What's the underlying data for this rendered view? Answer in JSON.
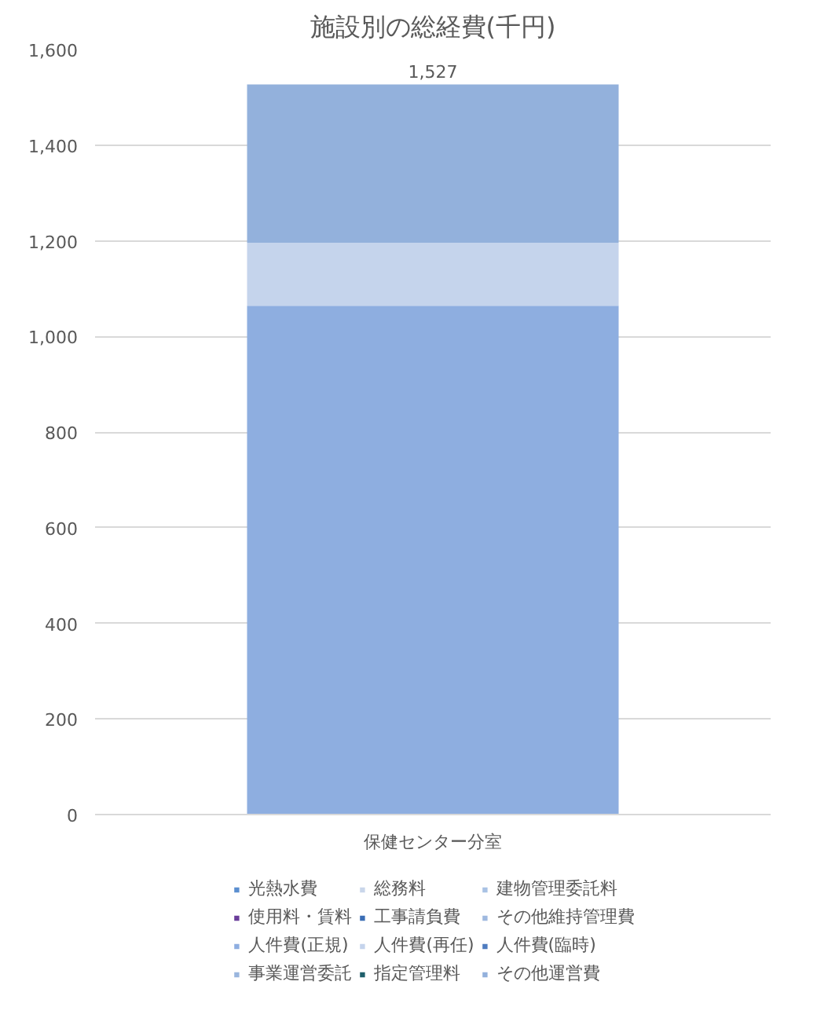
{
  "chart_data": {
    "type": "bar",
    "stacked": true,
    "title": "施設別の総経費(千円)",
    "categories": [
      "保健センター分室"
    ],
    "series": [
      {
        "name": "光熱水費",
        "color": "#5b8fd0",
        "values": [
          0
        ]
      },
      {
        "name": "総務料",
        "color": "#c9d6ea",
        "values": [
          0
        ]
      },
      {
        "name": "建物管理委託料",
        "color": "#a9c2e4",
        "values": [
          0
        ]
      },
      {
        "name": "使用料・賃料",
        "color": "#6a3d9a",
        "values": [
          0
        ]
      },
      {
        "name": "工事請負費",
        "color": "#3a6db5",
        "values": [
          0
        ]
      },
      {
        "name": "その他維持管理費",
        "color": "#9fb9df",
        "values": [
          0
        ]
      },
      {
        "name": "人件費(正規)",
        "color": "#8eaee0",
        "values": [
          1064
        ]
      },
      {
        "name": "人件費(再任)",
        "color": "#c5d4ec",
        "values": [
          132
        ]
      },
      {
        "name": "人件費(臨時)",
        "color": "#4f7cc0",
        "values": [
          0
        ]
      },
      {
        "name": "事業運営委託",
        "color": "#9ab6de",
        "values": [
          0
        ]
      },
      {
        "name": "指定管理料",
        "color": "#1f5f6b",
        "values": [
          0
        ]
      },
      {
        "name": "その他運営費",
        "color": "#93b1dc",
        "values": [
          331
        ]
      }
    ],
    "totals": [
      "1,527"
    ],
    "ylim": [
      0,
      1600
    ],
    "yticks": [
      0,
      200,
      400,
      600,
      800,
      {
        "value": 1000,
        "label": "1,000"
      },
      {
        "value": 1200,
        "label": "1,200"
      },
      {
        "value": 1400,
        "label": "1,400"
      },
      {
        "value": 1600,
        "label": "1,600"
      }
    ],
    "grid": "y",
    "legend": "bottom"
  }
}
